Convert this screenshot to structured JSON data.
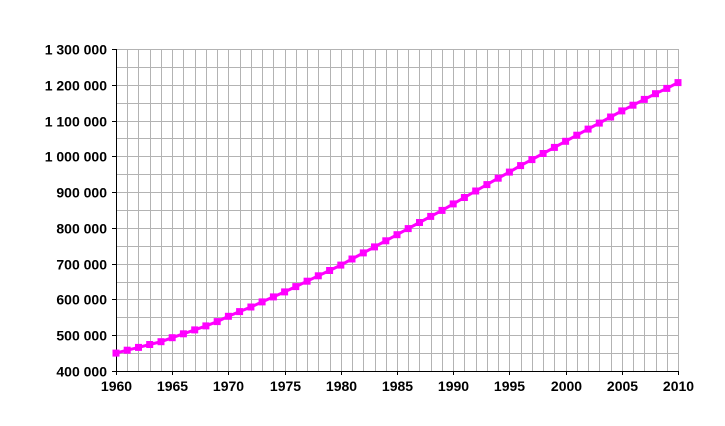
{
  "chart_data": {
    "type": "line",
    "title": "",
    "xlabel": "",
    "ylabel": "",
    "xlim": [
      1960,
      2010
    ],
    "ylim": [
      400000,
      1300000
    ],
    "x_ticks": [
      "1960",
      "1965",
      "1970",
      "1975",
      "1980",
      "1985",
      "1990",
      "1995",
      "2000",
      "2005",
      "2010"
    ],
    "y_ticks": [
      "400 000",
      "500 000",
      "600 000",
      "700 000",
      "800 000",
      "900 000",
      "1 000 000",
      "1 100 000",
      "1 200 000",
      "1 300 000"
    ],
    "grid": true,
    "legend": "none",
    "series": [
      {
        "color": "#ff00ff",
        "marker": "square",
        "x": [
          1960,
          1961,
          1962,
          1963,
          1964,
          1965,
          1966,
          1967,
          1968,
          1969,
          1970,
          1971,
          1972,
          1973,
          1974,
          1975,
          1976,
          1977,
          1978,
          1979,
          1980,
          1981,
          1982,
          1983,
          1984,
          1985,
          1986,
          1987,
          1988,
          1989,
          1990,
          1991,
          1992,
          1993,
          1994,
          1995,
          1996,
          1997,
          1998,
          1999,
          2000,
          2001,
          2002,
          2003,
          2004,
          2005,
          2006,
          2007,
          2008,
          2009,
          2010
        ],
        "values": [
          450000,
          458000,
          466000,
          474000,
          482000,
          493000,
          504000,
          515000,
          526000,
          538000,
          553000,
          566000,
          579000,
          593000,
          607000,
          621000,
          636000,
          651000,
          666000,
          681000,
          696000,
          713000,
          730000,
          747000,
          764000,
          781000,
          798000,
          815000,
          832000,
          849000,
          867000,
          885000,
          903000,
          921000,
          939000,
          956000,
          974000,
          991000,
          1008000,
          1025000,
          1042000,
          1059000,
          1076000,
          1093000,
          1110000,
          1127000,
          1143000,
          1159000,
          1175000,
          1190000,
          1206000
        ]
      }
    ]
  }
}
